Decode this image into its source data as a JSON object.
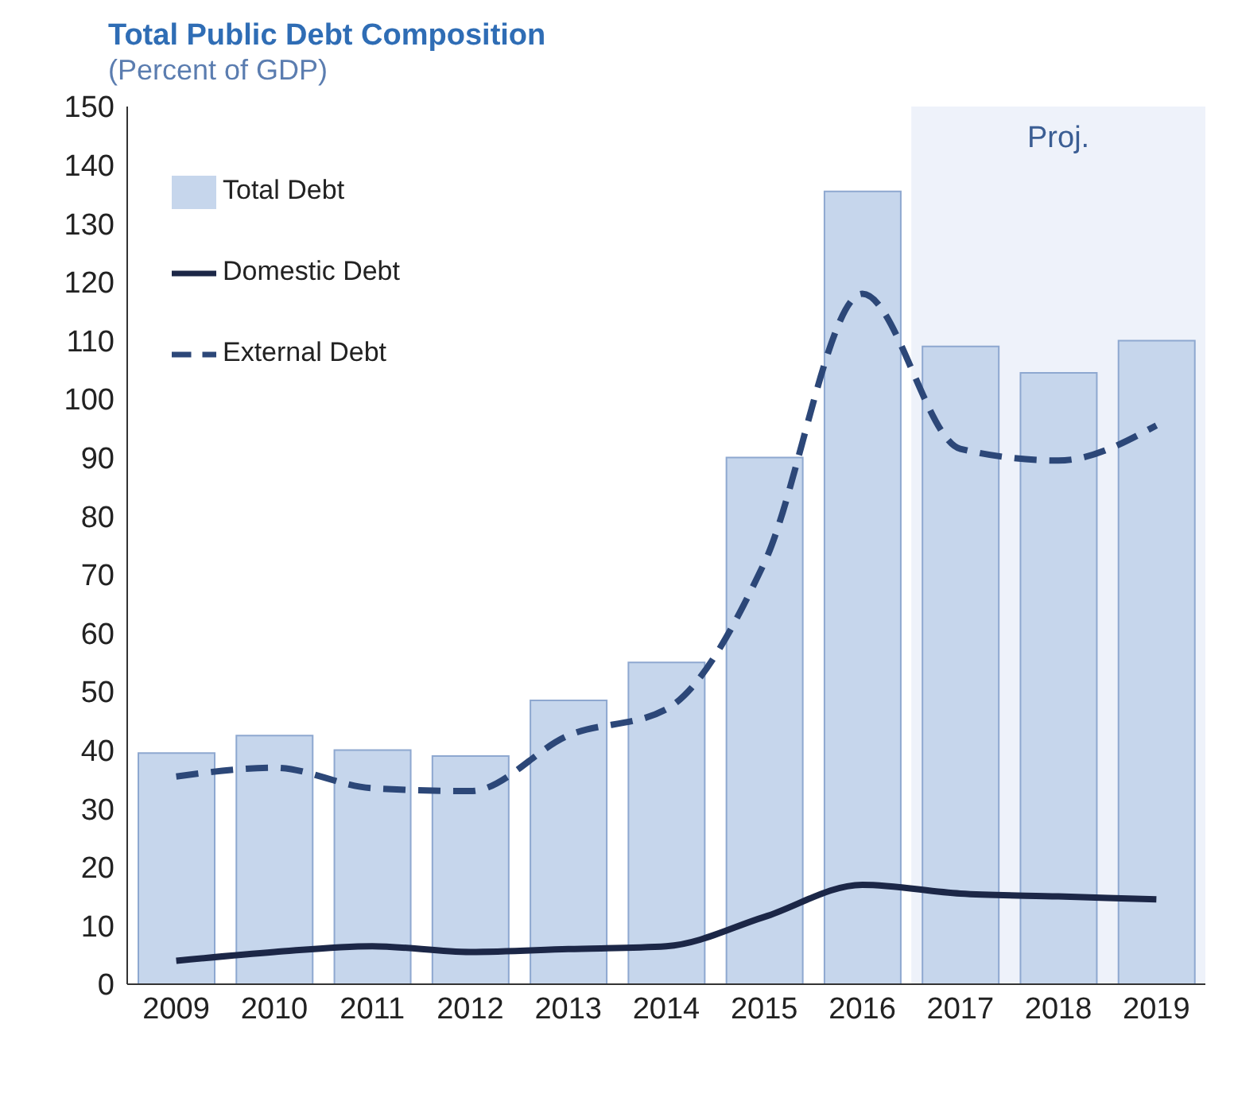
{
  "chart_data": {
    "type": "bar",
    "title": "Total Public Debt Composition",
    "subtitle": "(Percent of GDP)",
    "categories": [
      "2009",
      "2010",
      "2011",
      "2012",
      "2013",
      "2014",
      "2015",
      "2016",
      "2017",
      "2018",
      "2019"
    ],
    "series": [
      {
        "name": "Total Debt",
        "color": "#c6d6ec",
        "values": [
          39.5,
          42.5,
          40,
          39,
          48.5,
          55,
          90,
          135.5,
          109,
          104.5,
          110
        ]
      },
      {
        "name": "Domestic Debt",
        "type": "line",
        "color": "#1c2747",
        "line_style": "solid",
        "values": [
          4,
          5.5,
          6.5,
          5.5,
          6,
          6.5,
          11.5,
          17,
          15.5,
          15,
          14.5
        ]
      },
      {
        "name": "External Debt",
        "type": "line",
        "color": "#2c4778",
        "line_style": "dashed",
        "values": [
          35.5,
          37,
          33.5,
          33,
          42.5,
          47,
          72,
          118,
          91.5,
          89.5,
          95.5
        ]
      }
    ],
    "ylim": [
      0,
      150
    ],
    "yticks": [
      0,
      10,
      20,
      30,
      40,
      50,
      60,
      70,
      80,
      90,
      100,
      110,
      120,
      130,
      140,
      150
    ],
    "bands": [
      {
        "axis": "x",
        "from": "2017",
        "to": "2019",
        "label": "Proj.",
        "color": "#eef2fa"
      }
    ],
    "grid": false,
    "legend": "top left",
    "marker": "none"
  }
}
